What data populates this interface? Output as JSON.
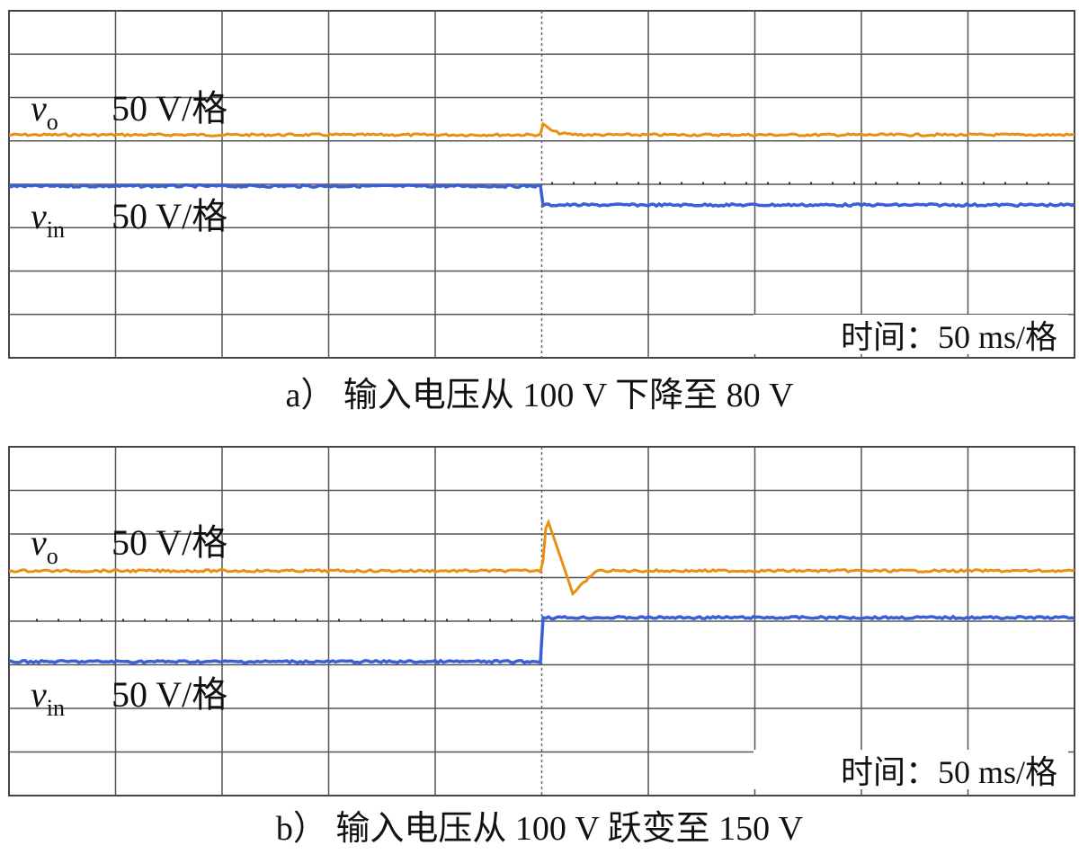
{
  "panels": [
    {
      "vo_label": {
        "symbol": "v",
        "subscript": "o",
        "scale": "50 V/格"
      },
      "vin_label": {
        "symbol": "v",
        "subscript": "in",
        "scale": "50 V/格"
      },
      "time_label": "时间：50 ms/格",
      "caption": "a） 输入电压从 100 V 下降至 80 V"
    },
    {
      "vo_label": {
        "symbol": "v",
        "subscript": "o",
        "scale": "50 V/格"
      },
      "vin_label": {
        "symbol": "v",
        "subscript": "in",
        "scale": "50 V/格"
      },
      "time_label": "时间：50 ms/格",
      "caption": "b） 输入电压从 100 V 跃变至 150 V"
    }
  ]
}
